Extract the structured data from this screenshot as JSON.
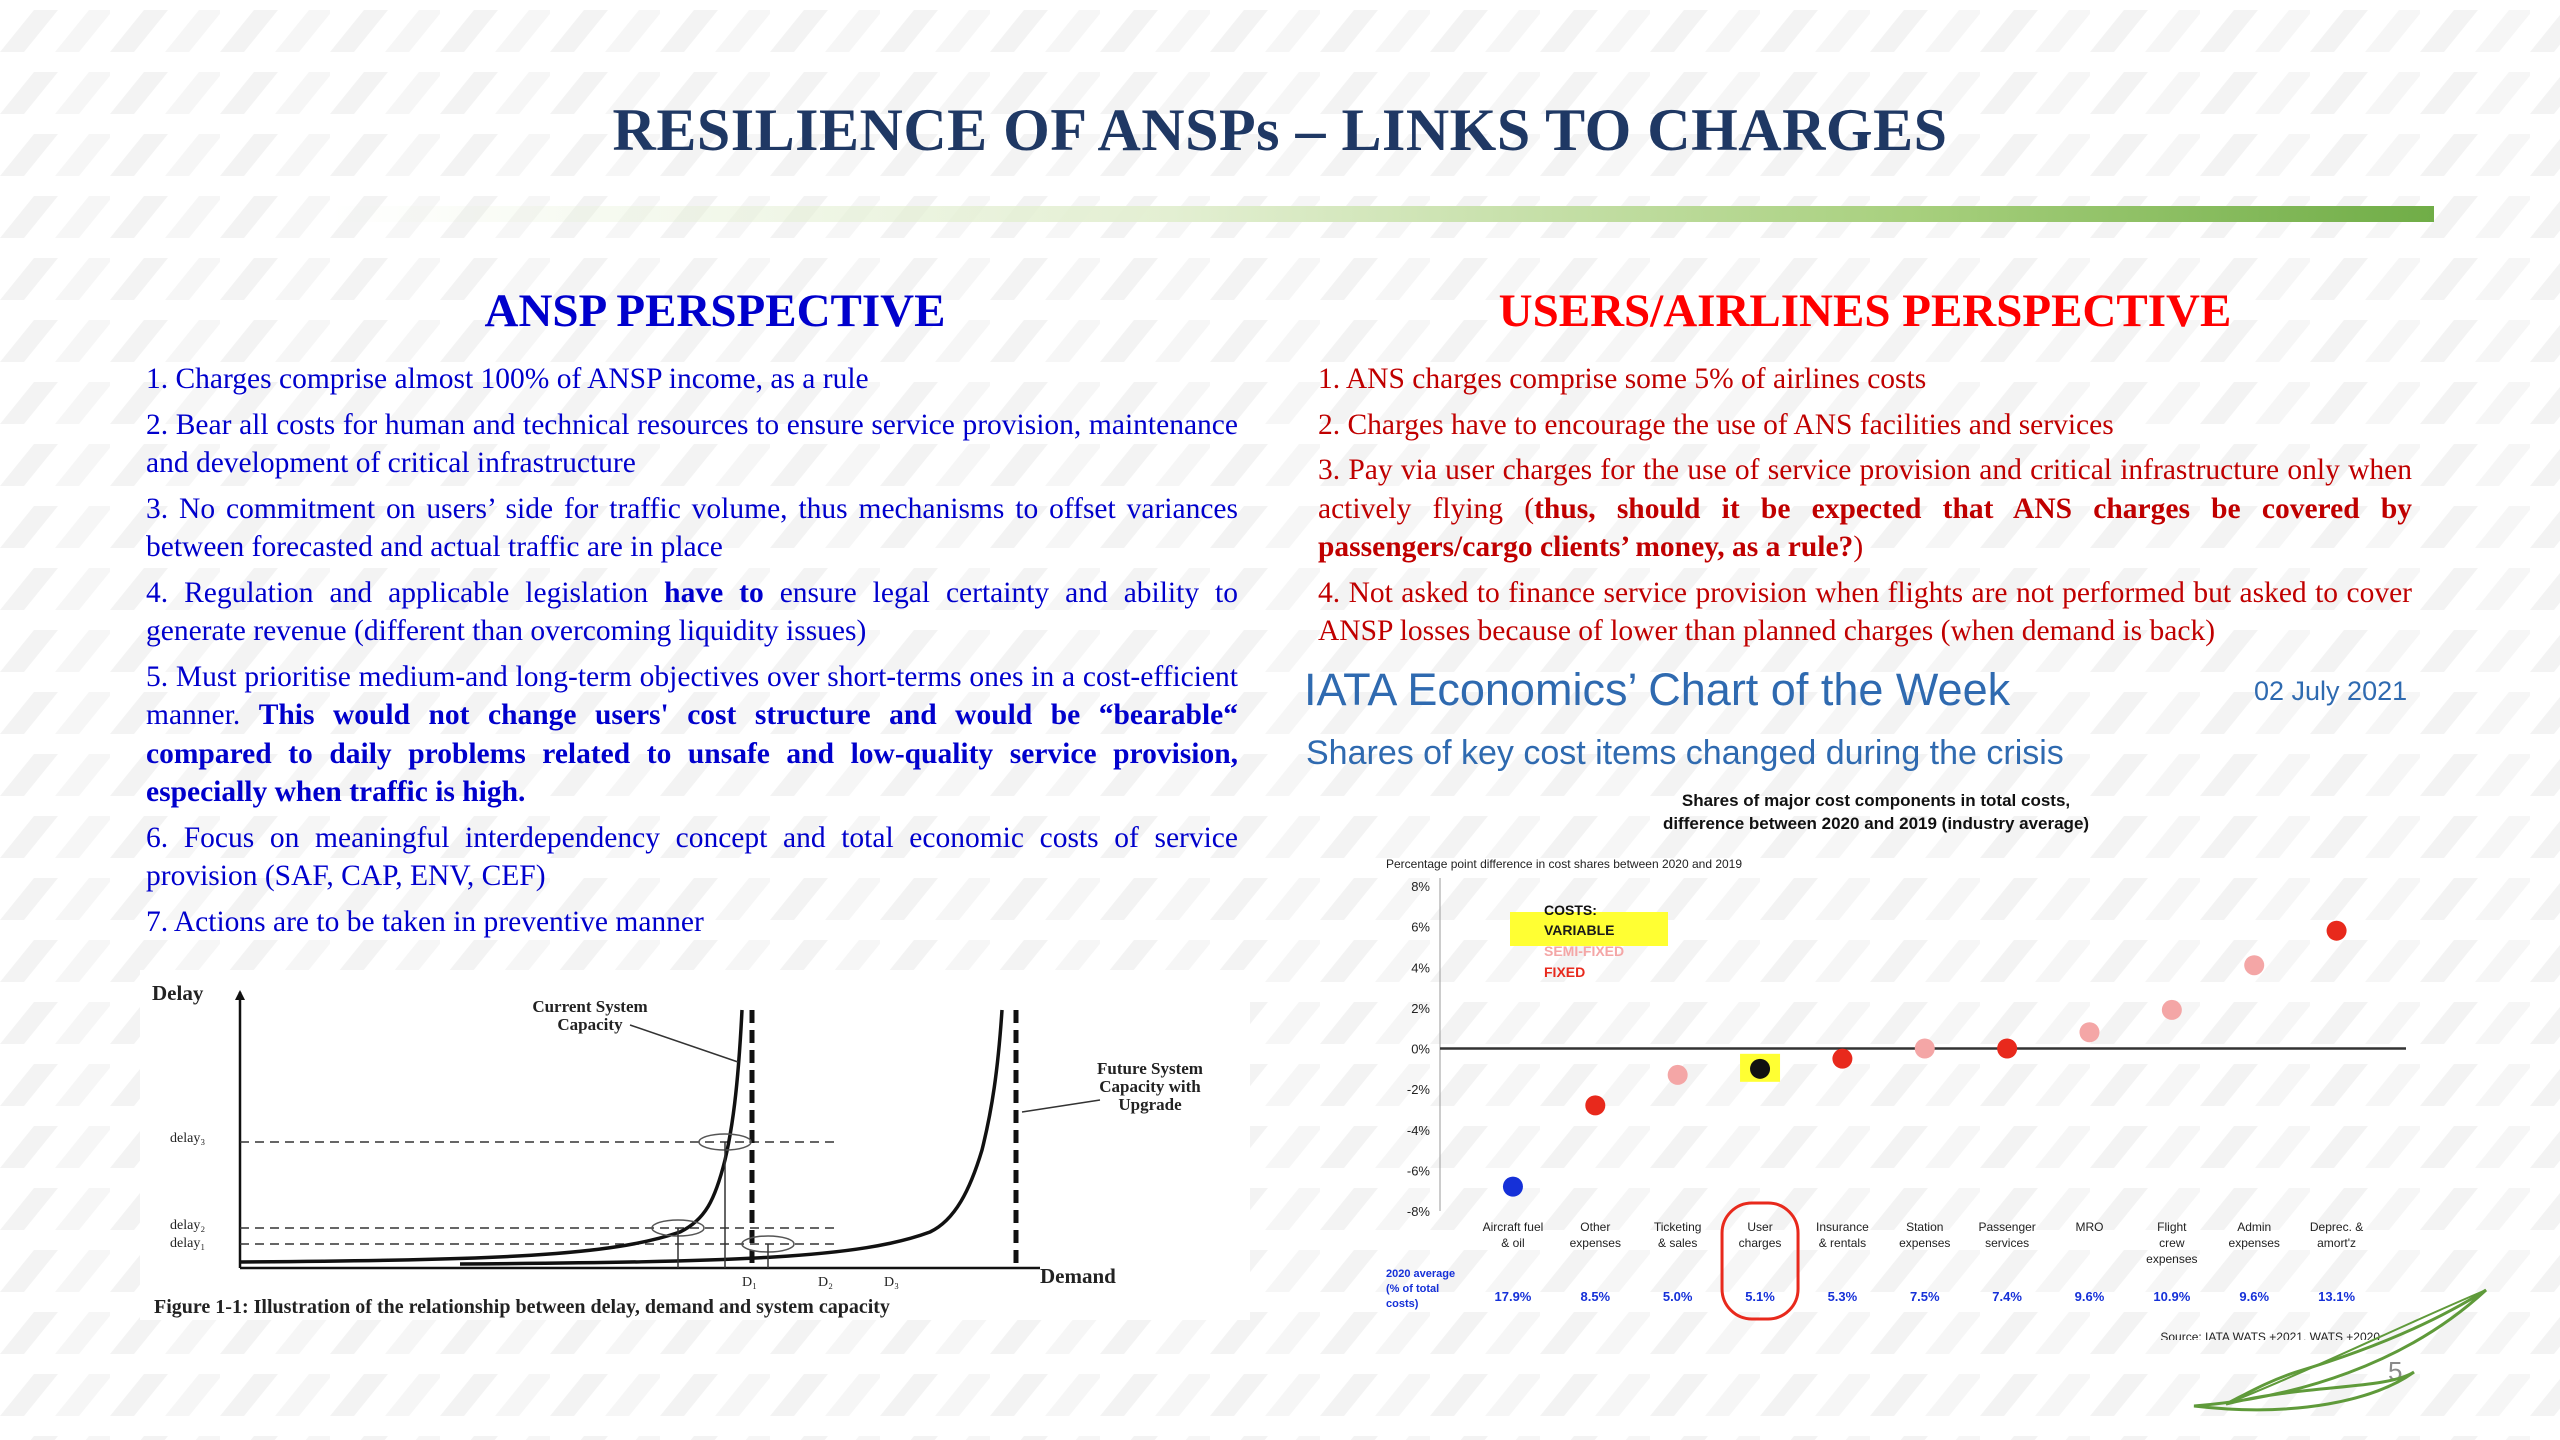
{
  "slide": {
    "title": "RESILIENCE OF ANSPs – LINKS TO CHARGES",
    "page_number": "5",
    "colors": {
      "title": "#1f3864",
      "ansp": "#0000cc",
      "users": "#ff0000",
      "accent_green": "#70ad47"
    }
  },
  "ansp": {
    "heading": "ANSP PERSPECTIVE",
    "items": [
      {
        "text": "1. Charges comprise almost 100% of ANSP income, as a rule"
      },
      {
        "text": "2. Bear all costs for human and technical resources to ensure service provision, maintenance and development of critical infrastructure"
      },
      {
        "text": "3. No commitment on users’ side for traffic volume, thus mechanisms to offset variances between forecasted and actual traffic are in place"
      },
      {
        "pre": "4. Regulation and applicable legislation ",
        "bold": "have to",
        "post": " ensure legal certainty and ability to generate revenue (different than overcoming liquidity issues)"
      },
      {
        "pre": "5. Must prioritise medium-and long-term objectives over short-terms ones in a cost-efficient manner. ",
        "bold": "This would not change users' cost structure and would be “bearable“ compared to daily problems related to unsafe and low-quality service provision, especially when traffic is high."
      },
      {
        "text": "6. Focus on meaningful interdependency concept and total economic costs of service provision (SAF, CAP, ENV, CEF)"
      },
      {
        "text": "7. Actions are to be taken in preventive manner"
      }
    ]
  },
  "users": {
    "heading": "USERS/AIRLINES PERSPECTIVE",
    "items": [
      {
        "text": "1. ANS charges comprise some 5% of airlines costs"
      },
      {
        "text": "2. Charges have to encourage the use of ANS facilities and services"
      },
      {
        "pre": "3. Pay via user charges for the use of service provision and critical infrastructure only when actively flying (",
        "bold": "thus, should it be expected that ANS charges be covered by passengers/cargo clients’ money, as a rule?",
        "post": ")"
      },
      {
        "text": "4. Not asked to finance service provision when flights are not performed but asked to cover ANSP losses because of lower than planned charges (when demand is back)"
      }
    ]
  },
  "delay_figure": {
    "y_label": "Delay",
    "x_label": "Demand",
    "y_ticks": [
      "delay₃",
      "delay₂",
      "delay₁"
    ],
    "x_ticks": [
      "D₁",
      "D₂",
      "D₃"
    ],
    "current_label_1": "Current System",
    "current_label_2": "Capacity",
    "future_label_1": "Future System",
    "future_label_2": "Capacity with",
    "future_label_3": "Upgrade",
    "caption": "Figure 1-1: Illustration of the relationship between delay, demand and system capacity"
  },
  "iata": {
    "title": "IATA Economics’ Chart of the Week",
    "date": "02 July 2021",
    "subtitle": "Shares of key cost items changed during the crisis"
  },
  "chart_data": {
    "type": "scatter",
    "title": "Shares of major cost components in total costs, difference between 2020 and 2019 (industry average)",
    "ylabel": "Percentage point difference in cost shares between 2020 and 2019",
    "ylim": [
      -8,
      8
    ],
    "y_ticks": [
      "8%",
      "6%",
      "4%",
      "2%",
      "0%",
      "-2%",
      "-4%",
      "-6%",
      "-8%"
    ],
    "categories": [
      [
        "Aircraft fuel",
        "& oil"
      ],
      [
        "Other",
        "expenses"
      ],
      [
        "Ticketing",
        "& sales"
      ],
      [
        "User",
        "charges"
      ],
      [
        "Insurance",
        "& rentals"
      ],
      [
        "Station",
        "expenses"
      ],
      [
        "Passenger",
        "services"
      ],
      [
        "MRO"
      ],
      [
        "Flight",
        "crew",
        "expenses"
      ],
      [
        "Admin",
        "expenses"
      ],
      [
        "Deprec. &",
        "amort'z"
      ]
    ],
    "values": [
      -6.8,
      -2.8,
      -1.3,
      -1.0,
      -0.5,
      0.0,
      0.0,
      0.8,
      1.9,
      4.1,
      5.8
    ],
    "cost_type": [
      "variable",
      "fixed",
      "semi-fixed",
      "variable",
      "fixed",
      "semi-fixed",
      "fixed",
      "semi-fixed",
      "semi-fixed",
      "semi-fixed",
      "fixed"
    ],
    "averages_label": "2020 average (% of total costs)",
    "averages": [
      "17.9%",
      "8.5%",
      "5.0%",
      "5.1%",
      "5.3%",
      "7.5%",
      "7.4%",
      "9.6%",
      "10.9%",
      "9.6%",
      "13.1%"
    ],
    "legend": {
      "heading": "COSTS:",
      "items": [
        {
          "label": "VARIABLE",
          "color": "#1a1a1a"
        },
        {
          "label": "SEMI-FIXED",
          "color": "#f4a6a6"
        },
        {
          "label": "FIXED",
          "color": "#e8291c"
        }
      ]
    },
    "colors": {
      "variable": "#1530d8",
      "semi-fixed": "#f4a6a6",
      "fixed": "#e8291c",
      "highlighted_variable": "#111111",
      "highlight": "#ffff33"
    },
    "highlighted_category": "User charges",
    "source": "Source: IATA WATS +2021, WATS +2020"
  }
}
